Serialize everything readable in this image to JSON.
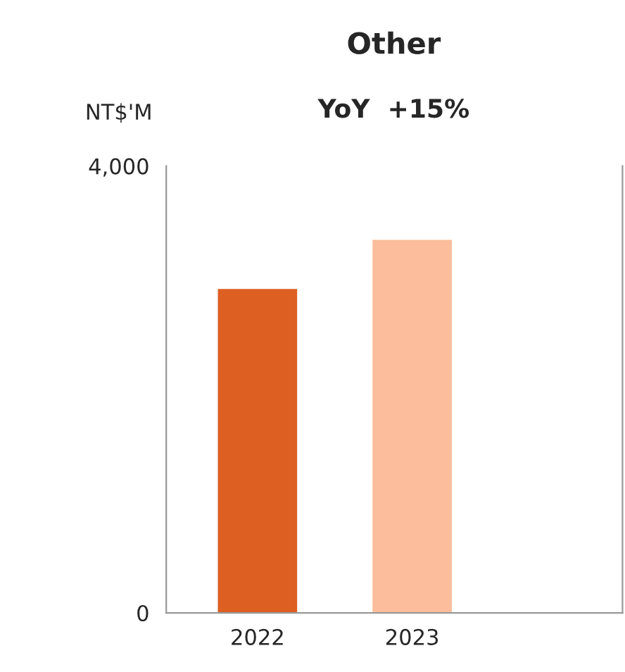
{
  "chart_data": {
    "type": "bar",
    "title": "Other",
    "subtitle": "YoY  +15%",
    "ylabel": "NT$'M",
    "categories": [
      "2022",
      "2023"
    ],
    "values": [
      2890,
      3330
    ],
    "colors": [
      "#dd5f22",
      "#fbbd9b"
    ],
    "ylim": [
      0,
      4000
    ],
    "yticks": [
      0,
      {
        "value": 4000,
        "label": "4,000"
      }
    ],
    "grid": false,
    "legend": false
  }
}
